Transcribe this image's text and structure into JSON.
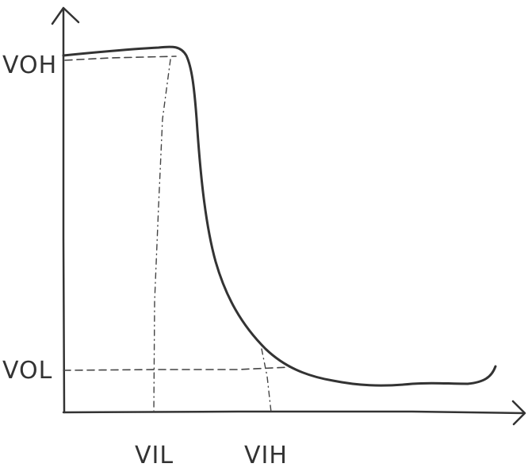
{
  "labels": {
    "voh": "VOH",
    "vol": "VOL",
    "vil": "VIL",
    "vih": "VIH"
  }
}
